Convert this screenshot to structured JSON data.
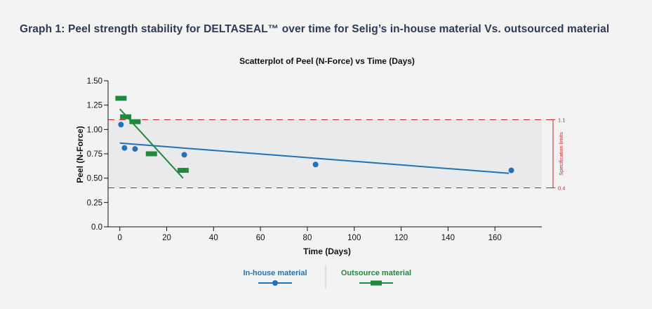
{
  "page": {
    "heading": "Graph 1: Peel strength stability for DELTASEAL™ over time for Selig’s in-house material Vs. outsourced material"
  },
  "chart_data": {
    "type": "scatter",
    "title": "Scatterplot of Peel (N-Force) vs Time (Days)",
    "xlabel": "Time (Days)",
    "ylabel": "Peel (N-Force)",
    "xlim": [
      -5,
      180
    ],
    "ylim": [
      0,
      1.5
    ],
    "x_ticks": [
      0,
      20,
      40,
      60,
      80,
      100,
      120,
      140,
      160
    ],
    "y_ticks": [
      "0.0",
      "0.25",
      "0.50",
      "0.75",
      "1.00",
      "1.25",
      "1.50"
    ],
    "grid": false,
    "legend_position": "bottom-center",
    "series": [
      {
        "name": "In-house material",
        "color": "#2372b9",
        "marker": "circle",
        "x": [
          0.5,
          2,
          6.5,
          27.5,
          83.5,
          167
        ],
        "y": [
          1.05,
          0.81,
          0.8,
          0.74,
          0.64,
          0.58
        ],
        "trend": {
          "x": [
            0,
            166
          ],
          "y": [
            0.86,
            0.55
          ]
        }
      },
      {
        "name": "Outsource material",
        "color": "#1f8a3c",
        "marker": "square",
        "x": [
          0.5,
          2.5,
          6.5,
          13.5,
          27
        ],
        "y": [
          1.32,
          1.13,
          1.08,
          0.75,
          0.58
        ],
        "trend": {
          "x": [
            0,
            27
          ],
          "y": [
            1.21,
            0.5
          ]
        }
      }
    ],
    "spec_limits": {
      "label": "Specification limits",
      "upper": 1.1,
      "lower": 0.4,
      "upper_label": "1.1",
      "lower_label": "0.4",
      "color": "#c0262d"
    }
  }
}
